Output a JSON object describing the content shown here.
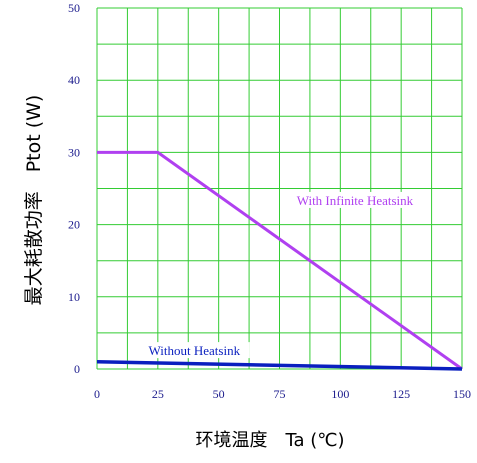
{
  "chart_data": {
    "type": "line",
    "xlabel": "环境温度　Ta (℃)",
    "ylabel": "最大耗散功率　Ptot (W)",
    "xlim": [
      0,
      150
    ],
    "ylim": [
      0,
      50
    ],
    "x_ticks": [
      0,
      25,
      50,
      75,
      100,
      125,
      150
    ],
    "y_ticks": [
      0,
      10,
      20,
      30,
      40,
      50
    ],
    "grid": true,
    "colors": {
      "grid": "#33cc33",
      "ticks": "#1a1a8c"
    },
    "series": [
      {
        "name": "With Infinite Heatsink",
        "color": "#b040f0",
        "points": [
          [
            0,
            30
          ],
          [
            25,
            30
          ],
          [
            150,
            0
          ]
        ]
      },
      {
        "name": "Without Heatsink",
        "color": "#0a1fbf",
        "points": [
          [
            0,
            1
          ],
          [
            150,
            0
          ]
        ]
      }
    ],
    "annotations": [
      {
        "text": "With Infinite Heatsink",
        "color": "#b040f0",
        "x": 106,
        "y": 23
      },
      {
        "text": "Without Heatsink",
        "color": "#0a1fbf",
        "x": 40,
        "y": 2.2
      }
    ]
  }
}
